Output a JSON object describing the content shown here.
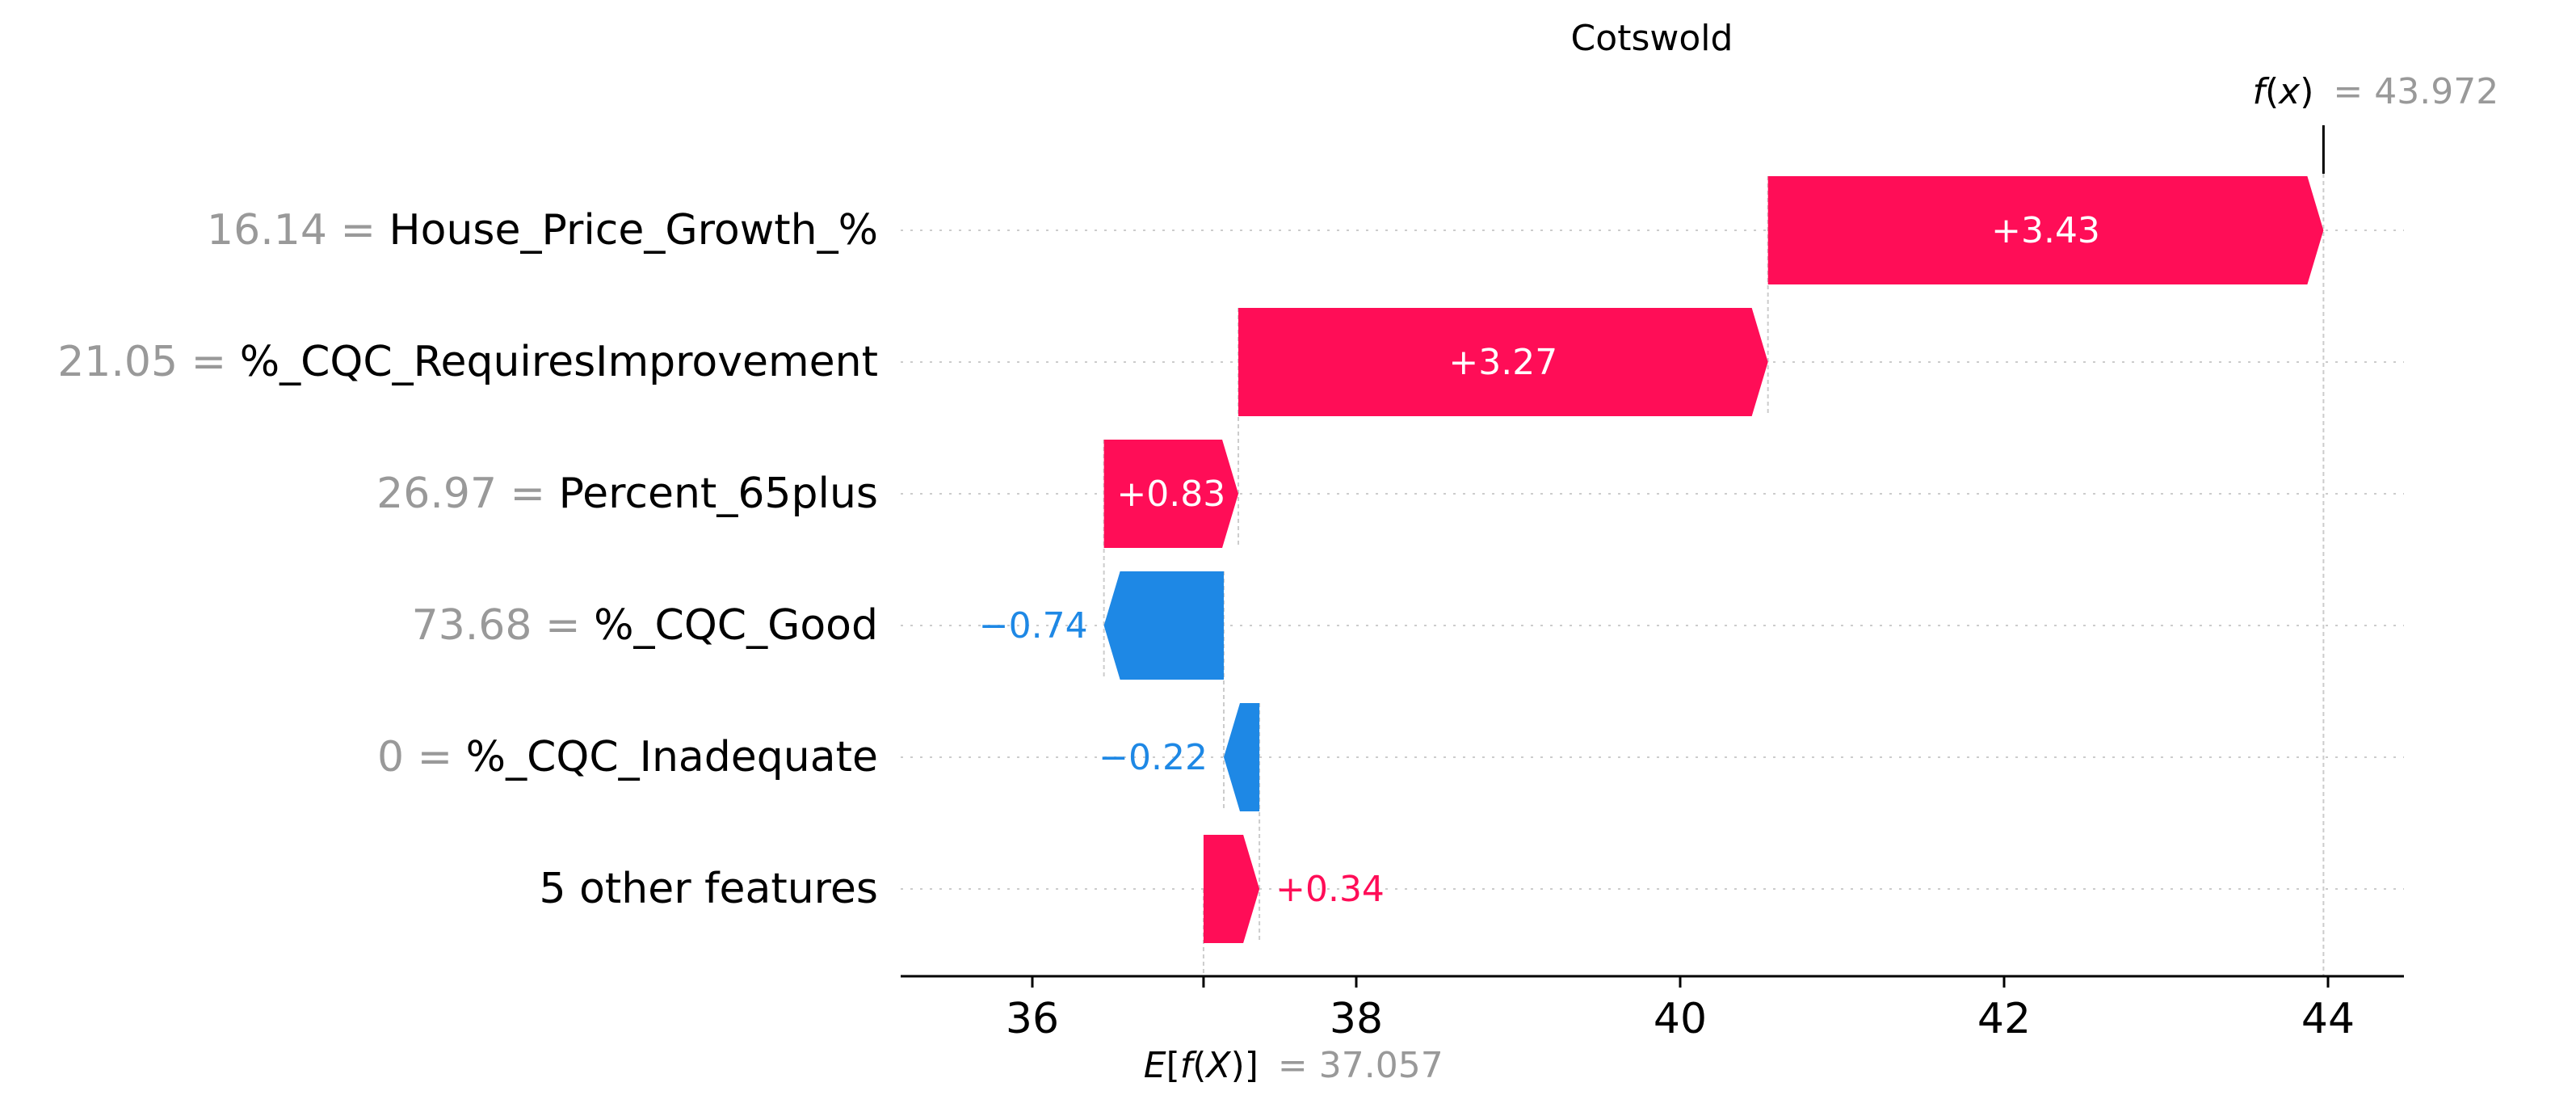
{
  "chart_data": {
    "type": "waterfall",
    "title": "Cotswold",
    "base_value": {
      "label": "E[f(X)]",
      "value": 37.057,
      "value_text": "= 37.057"
    },
    "output_value": {
      "label": "f(x)",
      "value": 43.972,
      "value_text": "= 43.972"
    },
    "features": [
      {
        "value_text": "16.14",
        "name": "House_Price_Growth_%",
        "contribution": 3.43,
        "label": "+3.43",
        "start": 40.542,
        "end": 43.972
      },
      {
        "value_text": "21.05",
        "name": "%_CQC_RequiresImprovement",
        "contribution": 3.27,
        "label": "+3.27",
        "start": 37.272,
        "end": 40.542
      },
      {
        "value_text": "26.97",
        "name": "Percent_65plus",
        "contribution": 0.83,
        "label": "+0.83",
        "start": 36.442,
        "end": 37.272
      },
      {
        "value_text": "73.68",
        "name": "%_CQC_Good",
        "contribution": -0.74,
        "label": "−0.74",
        "start": 37.182,
        "end": 36.442
      },
      {
        "value_text": "0",
        "name": "%_CQC_Inadequate",
        "contribution": -0.22,
        "label": "−0.22",
        "start": 37.402,
        "end": 37.182
      },
      {
        "value_text": "",
        "name": "5 other features",
        "contribution": 0.34,
        "label": "+0.34",
        "start": 37.057,
        "end": 37.402
      }
    ],
    "x_ticks": [
      36,
      38,
      40,
      42,
      44
    ],
    "x_tick_labels": [
      "36",
      "38",
      "40",
      "42",
      "44"
    ],
    "xlim": [
      35.2,
      44.95
    ],
    "colors": {
      "positive": "#ff0d57",
      "negative": "#1e88e5",
      "grey": "#999999",
      "text": "#000000",
      "gridline": "#cccccc"
    }
  }
}
